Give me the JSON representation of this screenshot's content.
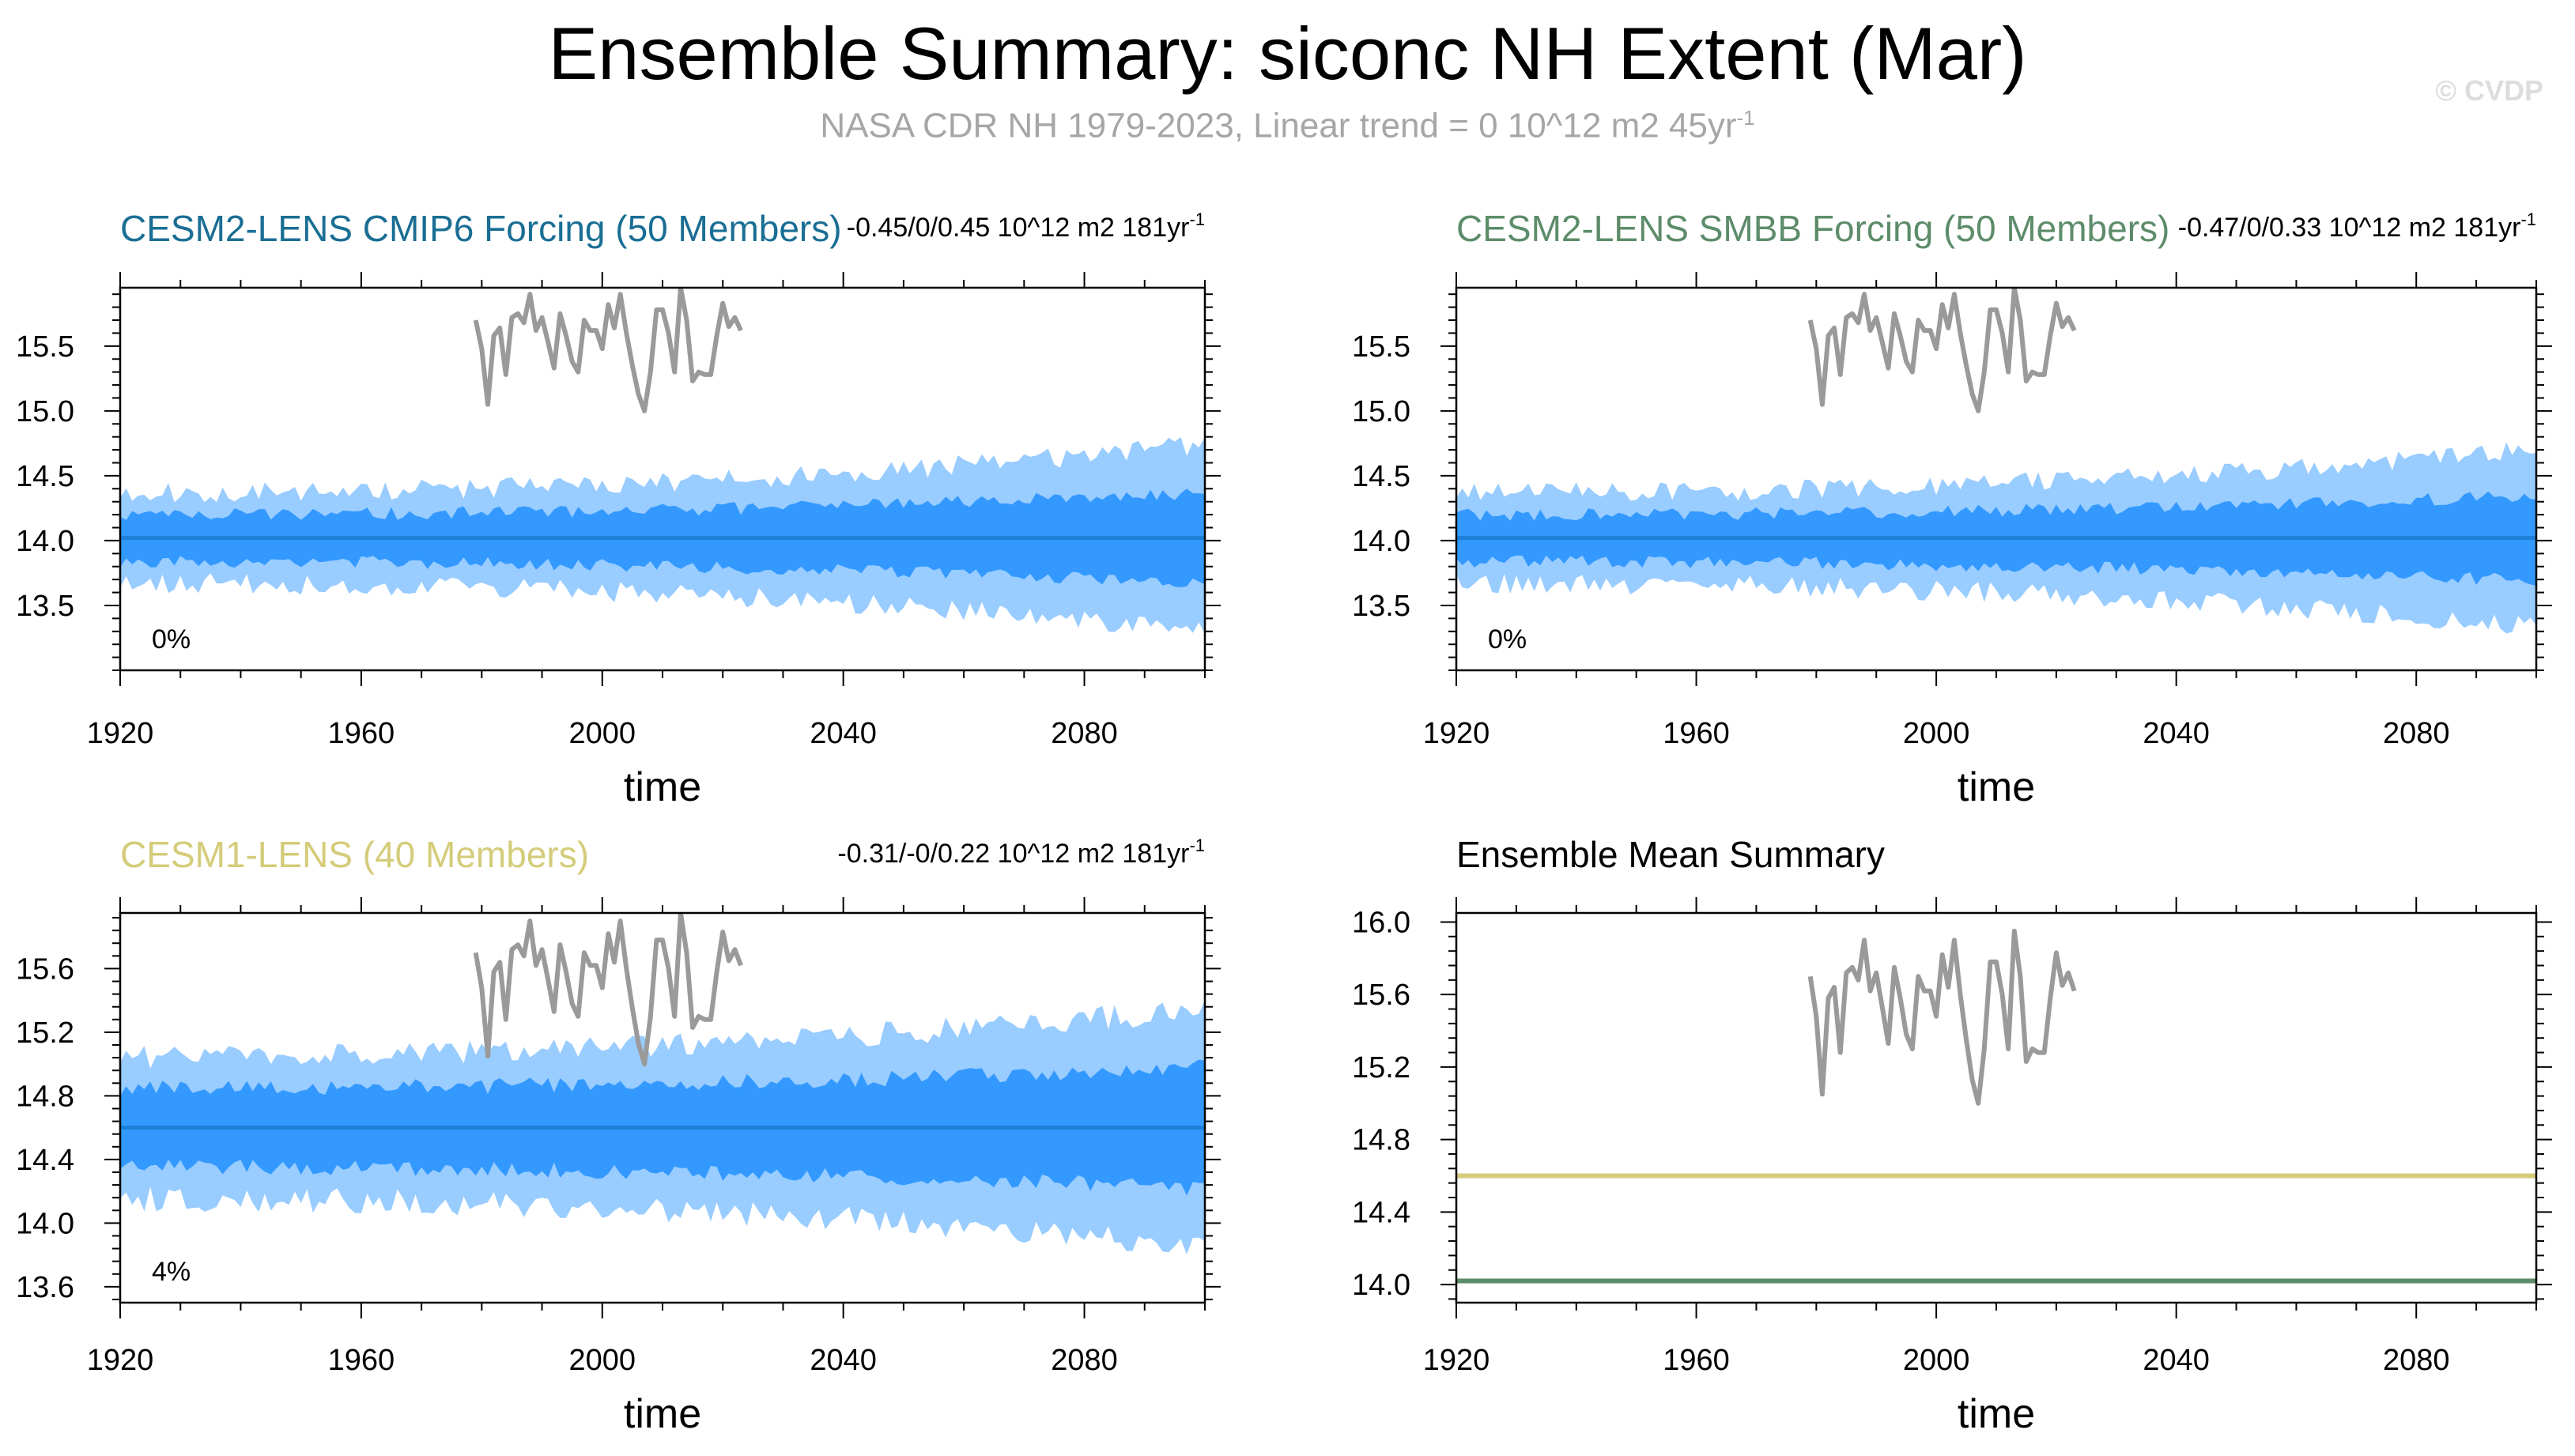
{
  "title": "Ensemble Summary: siconc NH Extent (Mar)",
  "subtitle": {
    "text": "NASA CDR NH 1979-2023, Linear trend = 0 10^12 m2 45yr",
    "sup": "-1"
  },
  "copyright": "© CVDP",
  "colors": {
    "obs": "#9a9a9a",
    "band_outer": "#99ccff",
    "band_inner": "#3399ff",
    "ens_mean": "#1e7fd8",
    "cesm2_cmip6": "#1a6e94",
    "cesm2_smbb": "#5d8c6a",
    "cesm1": "#d4cc7a"
  },
  "observations": {
    "years_start": 1979,
    "values": [
      15.7,
      15.48,
      15.05,
      15.58,
      15.64,
      15.28,
      15.72,
      15.75,
      15.68,
      15.9,
      15.62,
      15.72,
      15.53,
      15.33,
      15.75,
      15.58,
      15.38,
      15.3,
      15.7,
      15.62,
      15.62,
      15.48,
      15.82,
      15.64,
      15.9,
      15.6,
      15.35,
      15.13,
      15.0,
      15.3,
      15.78,
      15.78,
      15.6,
      15.3,
      15.95,
      15.7,
      15.23,
      15.3,
      15.28,
      15.28,
      15.58,
      15.83,
      15.65,
      15.72,
      15.62
    ]
  },
  "chart_data": [
    {
      "id": "cesm2_cmip6",
      "type": "area",
      "title": "CESM2-LENS CMIP6 Forcing (50 Members)",
      "title_color": "#1a6e94",
      "trend_text": "-0.45/0/0.45 10^12 m2 181yr",
      "trend_sup": "-1",
      "percent": "0%",
      "xlabel": "time",
      "ylabel": "",
      "xlim": [
        1920,
        2100
      ],
      "ylim": [
        13.0,
        15.95
      ],
      "xticks": [
        1920,
        1960,
        2000,
        2040,
        2080
      ],
      "yticks": [
        13.5,
        14.0,
        14.5,
        15.0,
        15.5
      ],
      "ytick_labels": [
        "13.5",
        "14.0",
        "14.5",
        "15.0",
        "15.5"
      ],
      "ens_mean": 14.02,
      "band_inner_halfwidth_start": 0.18,
      "band_inner_halfwidth_end": 0.35,
      "band_outer_halfwidth_start": 0.35,
      "band_outer_halfwidth_end": 0.72,
      "noise_seed": 11
    },
    {
      "id": "cesm2_smbb",
      "type": "area",
      "title": "CESM2-LENS SMBB Forcing (50 Members)",
      "title_color": "#5d8c6a",
      "trend_text": "-0.47/0/0.33 10^12 m2 181yr",
      "trend_sup": "-1",
      "percent": "0%",
      "xlabel": "time",
      "ylabel": "",
      "xlim": [
        1920,
        2100
      ],
      "ylim": [
        13.0,
        15.95
      ],
      "xticks": [
        1920,
        1960,
        2000,
        2040,
        2080
      ],
      "yticks": [
        13.5,
        14.0,
        14.5,
        15.0,
        15.5
      ],
      "ytick_labels": [
        "13.5",
        "14.0",
        "14.5",
        "15.0",
        "15.5"
      ],
      "ens_mean": 14.02,
      "band_inner_halfwidth_start": 0.18,
      "band_inner_halfwidth_end": 0.33,
      "band_outer_halfwidth_start": 0.35,
      "band_outer_halfwidth_end": 0.68,
      "noise_seed": 29
    },
    {
      "id": "cesm1",
      "type": "area",
      "title": "CESM1-LENS (40 Members)",
      "title_color": "#d4cc7a",
      "trend_text": "-0.31/-0/0.22 10^12 m2 181yr",
      "trend_sup": "-1",
      "percent": "4%",
      "xlabel": "time",
      "ylabel": "",
      "xlim": [
        1920,
        2100
      ],
      "ylim": [
        13.5,
        15.95
      ],
      "xticks": [
        1920,
        1960,
        2000,
        2040,
        2080
      ],
      "yticks": [
        13.6,
        14.0,
        14.4,
        14.8,
        15.2,
        15.6
      ],
      "ytick_labels": [
        "13.6",
        "14.0",
        "14.4",
        "14.8",
        "15.2",
        "15.6"
      ],
      "ens_mean": 14.6,
      "band_inner_halfwidth_start": 0.25,
      "band_inner_halfwidth_end": 0.38,
      "band_outer_halfwidth_start": 0.45,
      "band_outer_halfwidth_end": 0.75,
      "noise_seed": 47
    },
    {
      "id": "ensemble_mean_summary",
      "type": "line",
      "title": "Ensemble Mean Summary",
      "title_color": "#000000",
      "xlabel": "time",
      "ylabel": "",
      "xlim": [
        1920,
        2100
      ],
      "ylim": [
        13.9,
        16.05
      ],
      "xticks": [
        1920,
        1960,
        2000,
        2040,
        2080
      ],
      "yticks": [
        14.0,
        14.4,
        14.8,
        15.2,
        15.6,
        16.0
      ],
      "ytick_labels": [
        "14.0",
        "14.4",
        "14.8",
        "15.2",
        "15.6",
        "16.0"
      ],
      "series": [
        {
          "name": "CESM1-LENS",
          "value": 14.6,
          "color": "#d4cc7a"
        },
        {
          "name": "CESM2-LENS CMIP6 Forcing",
          "value": 14.02,
          "color": "#1a6e94"
        },
        {
          "name": "CESM2-LENS SMBB Forcing",
          "value": 14.02,
          "color": "#5d8c6a"
        }
      ]
    }
  ]
}
